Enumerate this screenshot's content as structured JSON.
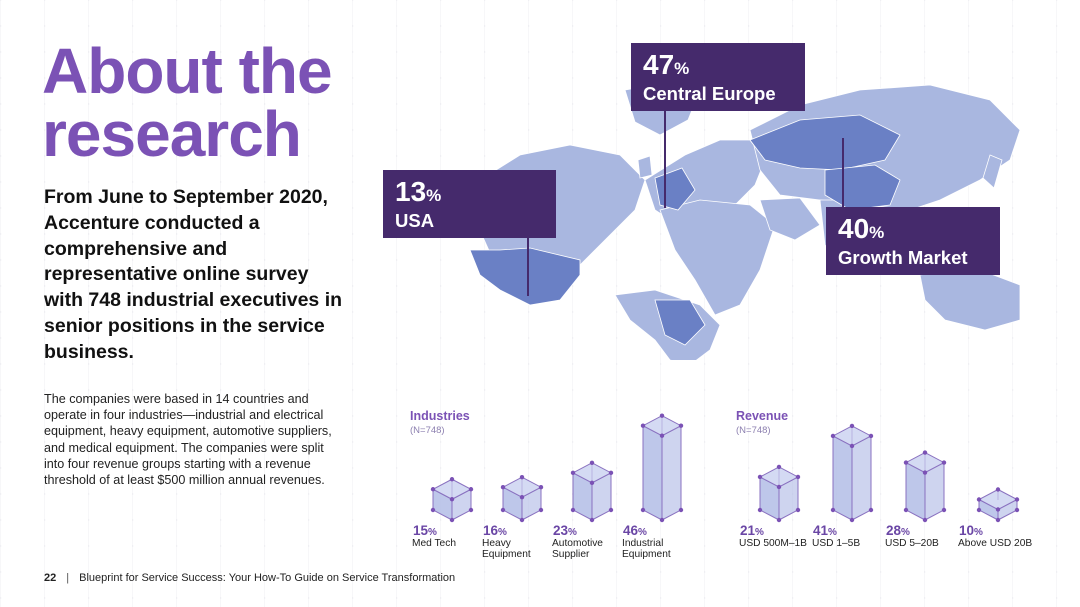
{
  "title_line1": "About the",
  "title_line2": "research",
  "lead": "From June to September 2020, Accenture conducted a comprehensive and representative online survey with 748 industrial executives in senior positions in the service business.",
  "body": "The companies were based in 14 countries and operate in four industries—industrial and electrical equipment, heavy equipment, automotive suppliers, and medical equipment. The companies were split into four revenue groups starting with a revenue threshold of at least $500 million annual revenues.",
  "footer": {
    "page": "22",
    "separator": "|",
    "text": "Blueprint for Service Success: Your How-To Guide on Service Transformation"
  },
  "map_callouts": [
    {
      "value": "47",
      "unit": "%",
      "region": "Central Europe"
    },
    {
      "value": "13",
      "unit": "%",
      "region": "USA"
    },
    {
      "value": "40",
      "unit": "%",
      "region": "Growth Market"
    }
  ],
  "colors": {
    "accent": "#7b52b5",
    "callout": "#452a6c",
    "land": "#a9b7e0",
    "land_highlight": "#6a80c5",
    "bar_fill": "#b3bde6",
    "bar_edge": "#8a72c0"
  },
  "chart_data": [
    {
      "type": "bar",
      "title": "Industries",
      "subtitle": "(N=748)",
      "categories": [
        "Med Tech",
        "Heavy Equipment",
        "Automotive Supplier",
        "Industrial Equipment"
      ],
      "category_lines": [
        [
          "Med Tech"
        ],
        [
          "Heavy",
          "Equipment"
        ],
        [
          "Automotive",
          "Supplier"
        ],
        [
          "Industrial",
          "Equipment"
        ]
      ],
      "values": [
        15,
        16,
        23,
        46
      ],
      "unit": "%"
    },
    {
      "type": "bar",
      "title": "Revenue",
      "subtitle": "(N=748)",
      "categories": [
        "USD 500M–1B",
        "USD 1–5B",
        "USD 5–20B",
        "Above USD 20B"
      ],
      "category_lines": [
        [
          "USD 500M–1B"
        ],
        [
          "USD 1–5B"
        ],
        [
          "USD 5–20B"
        ],
        [
          "Above USD 20B"
        ]
      ],
      "values": [
        21,
        41,
        28,
        10
      ],
      "unit": "%"
    }
  ]
}
